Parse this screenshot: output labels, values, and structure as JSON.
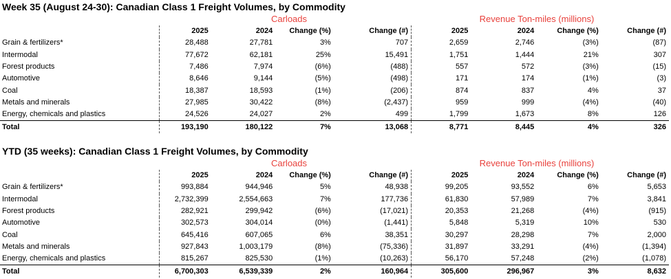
{
  "colors": {
    "group_header": "#e8413c"
  },
  "week": {
    "title": "Week 35 (August 24-30): Canadian Class 1 Freight Volumes, by Commodity",
    "carloads_label": "Carloads",
    "revenue_label": "Revenue Ton-miles (millions)",
    "headers": [
      "",
      "2025",
      "2024",
      "Change (%)",
      "Change (#)",
      "2025",
      "2024",
      "Change (%)",
      "Change (#)"
    ],
    "rows": [
      [
        "Grain & fertilizers*",
        "28,488",
        "27,781",
        "3%",
        "707",
        "2,659",
        "2,746",
        "(3%)",
        "(87)"
      ],
      [
        "Intermodal",
        "77,672",
        "62,181",
        "25%",
        "15,491",
        "1,751",
        "1,444",
        "21%",
        "307"
      ],
      [
        "Forest products",
        "7,486",
        "7,974",
        "(6%)",
        "(488)",
        "557",
        "572",
        "(3%)",
        "(15)"
      ],
      [
        "Automotive",
        "8,646",
        "9,144",
        "(5%)",
        "(498)",
        "171",
        "174",
        "(1%)",
        "(3)"
      ],
      [
        "Coal",
        "18,387",
        "18,593",
        "(1%)",
        "(206)",
        "874",
        "837",
        "4%",
        "37"
      ],
      [
        "Metals and minerals",
        "27,985",
        "30,422",
        "(8%)",
        "(2,437)",
        "959",
        "999",
        "(4%)",
        "(40)"
      ],
      [
        "Energy, chemicals and plastics",
        "24,526",
        "24,027",
        "2%",
        "499",
        "1,799",
        "1,673",
        "8%",
        "126"
      ]
    ],
    "total": [
      "Total",
      "193,190",
      "180,122",
      "7%",
      "13,068",
      "8,771",
      "8,445",
      "4%",
      "326"
    ]
  },
  "ytd": {
    "title": "YTD (35 weeks): Canadian Class 1 Freight Volumes, by Commodity",
    "carloads_label": "Carloads",
    "revenue_label": "Revenue Ton-miles (millions)",
    "headers": [
      "",
      "2025",
      "2024",
      "Change (%)",
      "Change (#)",
      "2025",
      "2024",
      "Change (%)",
      "Change (#)"
    ],
    "rows": [
      [
        "Grain & fertilizers*",
        "993,884",
        "944,946",
        "5%",
        "48,938",
        "99,205",
        "93,552",
        "6%",
        "5,653"
      ],
      [
        "Intermodal",
        "2,732,399",
        "2,554,663",
        "7%",
        "177,736",
        "61,830",
        "57,989",
        "7%",
        "3,841"
      ],
      [
        "Forest products",
        "282,921",
        "299,942",
        "(6%)",
        "(17,021)",
        "20,353",
        "21,268",
        "(4%)",
        "(915)"
      ],
      [
        "Automotive",
        "302,573",
        "304,014",
        "(0%)",
        "(1,441)",
        "5,848",
        "5,319",
        "10%",
        "530"
      ],
      [
        "Coal",
        "645,416",
        "607,065",
        "6%",
        "38,351",
        "30,297",
        "28,298",
        "7%",
        "2,000"
      ],
      [
        "Metals and minerals",
        "927,843",
        "1,003,179",
        "(8%)",
        "(75,336)",
        "31,897",
        "33,291",
        "(4%)",
        "(1,394)"
      ],
      [
        "Energy, chemicals and plastics",
        "815,267",
        "825,530",
        "(1%)",
        "(10,263)",
        "56,170",
        "57,248",
        "(2%)",
        "(1,078)"
      ]
    ],
    "total": [
      "Total",
      "6,700,303",
      "6,539,339",
      "2%",
      "160,964",
      "305,600",
      "296,967",
      "3%",
      "8,632"
    ]
  }
}
